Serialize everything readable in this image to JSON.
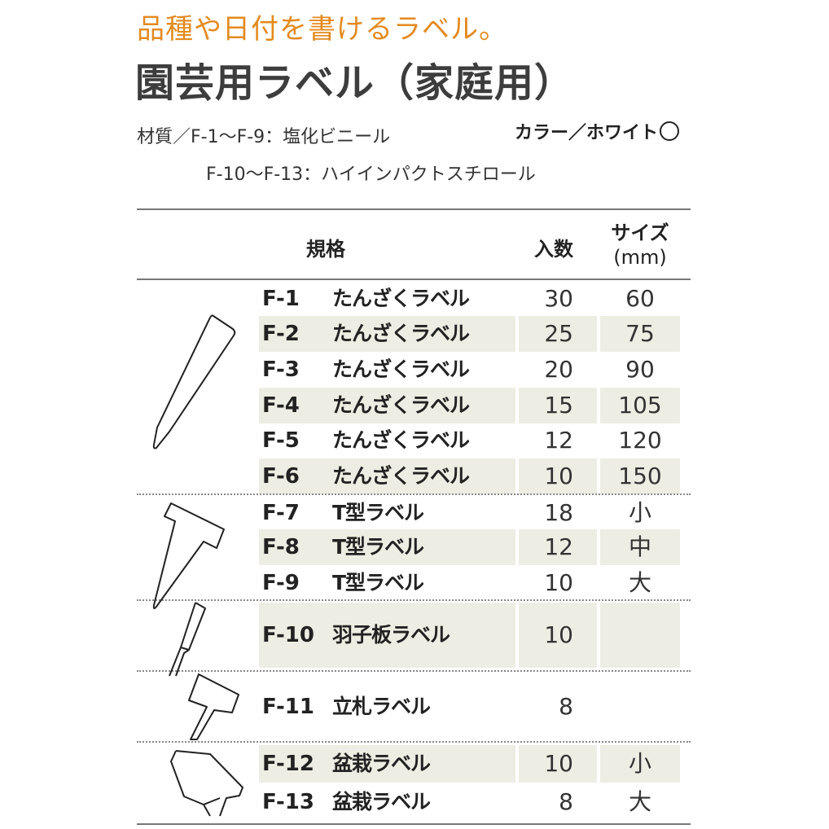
{
  "header": {
    "tagline": "品種や日付を書けるラベル。",
    "title": "園芸用ラベル（家庭用）",
    "material_line1": "材質／F-1〜F-9：塩化ビニール",
    "material_line2": "F-10〜F-13：ハイインパクトスチロール",
    "color_label": "カラー／ホワイト"
  },
  "colors": {
    "accent": "#e38a1f",
    "shade": "#eeede3",
    "text": "#222222"
  },
  "table": {
    "columns": {
      "spec": "規格",
      "qty": "入数",
      "size_line1": "サイズ",
      "size_line2": "(mm)"
    },
    "rows": [
      {
        "code": "F-1",
        "name": "たんざくラベル",
        "qty": "30",
        "size": "60",
        "shaded": false
      },
      {
        "code": "F-2",
        "name": "たんざくラベル",
        "qty": "25",
        "size": "75",
        "shaded": true
      },
      {
        "code": "F-3",
        "name": "たんざくラベル",
        "qty": "20",
        "size": "90",
        "shaded": false
      },
      {
        "code": "F-4",
        "name": "たんざくラベル",
        "qty": "15",
        "size": "105",
        "shaded": true
      },
      {
        "code": "F-5",
        "name": "たんざくラベル",
        "qty": "12",
        "size": "120",
        "shaded": false
      },
      {
        "code": "F-6",
        "name": "たんざくラベル",
        "qty": "10",
        "size": "150",
        "shaded": true
      },
      {
        "code": "F-7",
        "name": "T型ラベル",
        "qty": "18",
        "size": "小",
        "shaded": false
      },
      {
        "code": "F-8",
        "name": "T型ラベル",
        "qty": "12",
        "size": "中",
        "shaded": true
      },
      {
        "code": "F-9",
        "name": "T型ラベル",
        "qty": "10",
        "size": "大",
        "shaded": false
      },
      {
        "code": "F-10",
        "name": "羽子板ラベル",
        "qty": "10",
        "size": "",
        "shaded": true
      },
      {
        "code": "F-11",
        "name": "立札ラベル",
        "qty": "8",
        "size": "",
        "shaded": false
      },
      {
        "code": "F-12",
        "name": "盆栽ラベル",
        "qty": "10",
        "size": "小",
        "shaded": true
      },
      {
        "code": "F-13",
        "name": "盆栽ラベル",
        "qty": "8",
        "size": "大",
        "shaded": false
      }
    ]
  },
  "icons": [
    "tanzaku-label-icon",
    "t-label-icon",
    "hagoita-label-icon",
    "tatefuda-label-icon",
    "bonsai-label-icon"
  ]
}
